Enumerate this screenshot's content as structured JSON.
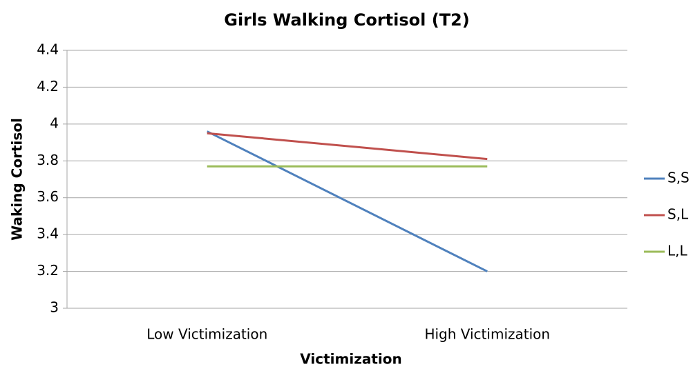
{
  "chart_data": {
    "type": "line",
    "title": "Girls Walking Cortisol (T2)",
    "x_label": "Victimization",
    "y_label": "Waking Cortisol",
    "categories": [
      "Low Victimization",
      "High Victimization"
    ],
    "series": [
      {
        "name": "S,S",
        "color": "#4f81bd",
        "values": [
          3.96,
          3.2
        ]
      },
      {
        "name": "S,L",
        "color": "#c0504d",
        "values": [
          3.95,
          3.81
        ]
      },
      {
        "name": "L,L",
        "color": "#9bbb59",
        "values": [
          3.77,
          3.77
        ]
      }
    ],
    "ylim": [
      3,
      4.4
    ],
    "yticks": [
      3,
      3.2,
      3.4,
      3.6,
      3.8,
      4,
      4.2,
      4.4
    ],
    "grid": true,
    "legend": "right"
  }
}
